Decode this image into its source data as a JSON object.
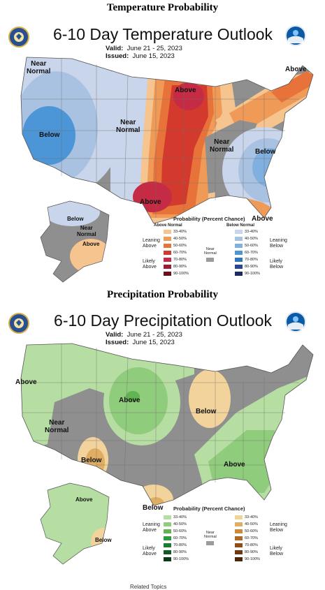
{
  "temperature": {
    "section_title": "Temperature Probability",
    "map_title": "6-10 Day Temperature Outlook",
    "valid_label": "Valid:",
    "valid_dates": "June 21 - 25, 2023",
    "issued_label": "Issued:",
    "issued_date": "June 15, 2023",
    "labels": {
      "nw": [
        "Near",
        "Normal"
      ],
      "west_below": "Below",
      "central_near": [
        "Near",
        "Normal"
      ],
      "mw_above": "Above",
      "ne_above": "Above",
      "east_near": [
        "Near",
        "Normal"
      ],
      "se_below": "Below",
      "tx_above": "Above",
      "fl_above": "Above",
      "ak_below": "Below",
      "ak_near": [
        "Near",
        "Normal"
      ],
      "ak_above": "Above"
    },
    "legend": {
      "title": "Probability (Percent Chance)",
      "above_header": "Above Normal",
      "below_header": "Below Normal",
      "near_header": [
        "Near",
        "Normal"
      ],
      "leaning_above": [
        "Leaning",
        "Above"
      ],
      "likely_above": [
        "Likely",
        "Above"
      ],
      "leaning_below": [
        "Leaning",
        "Below"
      ],
      "likely_below": [
        "Likely",
        "Below"
      ],
      "ranges": [
        "33-40%",
        "40-50%",
        "50-60%",
        "60-70%",
        "70-80%",
        "80-90%",
        "90-100%"
      ],
      "above_colors": [
        "#f5c48f",
        "#f09a57",
        "#e8733a",
        "#d33a2d",
        "#c52b45",
        "#9e1b34",
        "#6b0f1c"
      ],
      "below_colors": [
        "#c9d5ea",
        "#a9c2e2",
        "#7fb0df",
        "#4c95d6",
        "#2f74c0",
        "#26469a",
        "#1b2a63"
      ],
      "near_color": "#9b9b9b"
    }
  },
  "precipitation": {
    "section_title": "Precipitation Probability",
    "map_title": "6-10 Day Precipitation Outlook",
    "valid_label": "Valid:",
    "valid_dates": "June 21 - 25, 2023",
    "issued_label": "Issued:",
    "issued_date": "June 15, 2023",
    "labels": {
      "nw_above": "Above",
      "west_near": [
        "Near",
        "Normal"
      ],
      "plains_above": "Above",
      "mi_below": "Below",
      "sw_below": "Below",
      "se_above": "Above",
      "tx_below": "Below",
      "ak_above": "Above",
      "ak_below": "Below"
    },
    "legend": {
      "title": "Probability (Percent Chance)",
      "near_header": [
        "Near",
        "Normal"
      ],
      "leaning_above": [
        "Leaning",
        "Above"
      ],
      "likely_above": [
        "Likely",
        "Above"
      ],
      "leaning_below": [
        "Leaning",
        "Below"
      ],
      "likely_below": [
        "Likely",
        "Below"
      ],
      "ranges": [
        "33-40%",
        "40-50%",
        "50-60%",
        "60-70%",
        "70-80%",
        "80-90%",
        "90-100%"
      ],
      "above_colors": [
        "#b6dea3",
        "#8fcc7b",
        "#62b352",
        "#2f9a3b",
        "#1e7a2e",
        "#135a22",
        "#0a3a16"
      ],
      "below_colors": [
        "#f2d39b",
        "#e0ae63",
        "#c98a3a",
        "#ad6a27",
        "#8c4f1c",
        "#6b3914",
        "#4a260d"
      ],
      "near_color": "#9b9b9b"
    }
  },
  "footer_text": "Related Topics",
  "colors": {
    "us_base_gray": "#8f8f8f",
    "state_border": "#6f6f6f"
  }
}
